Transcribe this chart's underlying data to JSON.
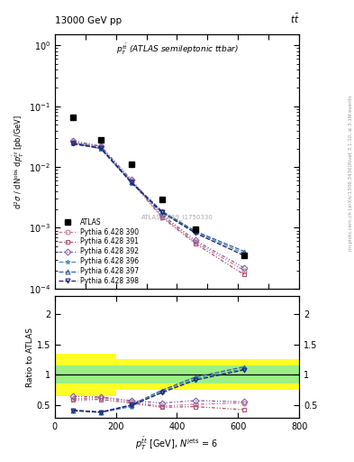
{
  "atlas_x": [
    60,
    150,
    250,
    350,
    460,
    620
  ],
  "atlas_y": [
    0.065,
    0.028,
    0.011,
    0.0029,
    0.00095,
    0.00035
  ],
  "mc_x": [
    60,
    150,
    250,
    350,
    460,
    620
  ],
  "pythia390_y": [
    0.026,
    0.022,
    0.006,
    0.00155,
    0.00058,
    0.0002
  ],
  "pythia391_y": [
    0.025,
    0.02,
    0.0058,
    0.0015,
    0.00055,
    0.00017
  ],
  "pythia392_y": [
    0.027,
    0.022,
    0.0062,
    0.00165,
    0.00062,
    0.00022
  ],
  "pythia396_y": [
    0.024,
    0.02,
    0.0055,
    0.00185,
    0.00085,
    0.00038
  ],
  "pythia397_y": [
    0.025,
    0.021,
    0.0057,
    0.0019,
    0.00088,
    0.00041
  ],
  "pythia398_y": [
    0.024,
    0.0205,
    0.0056,
    0.0018,
    0.00082,
    0.00035
  ],
  "ratio390_y": [
    0.6,
    0.62,
    0.55,
    0.48,
    0.51,
    0.53
  ],
  "ratio391_y": [
    0.58,
    0.59,
    0.53,
    0.46,
    0.47,
    0.42
  ],
  "ratio392_y": [
    0.64,
    0.63,
    0.57,
    0.53,
    0.57,
    0.55
  ],
  "ratio396_y": [
    0.4,
    0.37,
    0.47,
    0.72,
    0.93,
    1.1
  ],
  "ratio397_y": [
    0.41,
    0.38,
    0.5,
    0.74,
    0.96,
    1.13
  ],
  "ratio398_y": [
    0.41,
    0.38,
    0.49,
    0.7,
    0.91,
    1.08
  ],
  "color390": "#c87890",
  "color391": "#b05070",
  "color392": "#8060b0",
  "color396": "#5090c0",
  "color397": "#3060a0",
  "color398": "#202070",
  "ylim_main": [
    0.0001,
    1.5
  ],
  "ylim_ratio": [
    0.28,
    2.3
  ],
  "xlim": [
    0,
    800
  ],
  "band_steps_x": [
    0,
    100,
    200,
    650,
    800
  ],
  "band_yellow_lo": [
    0.65,
    0.65,
    0.75,
    0.75,
    0.75
  ],
  "band_yellow_hi": [
    1.35,
    1.35,
    1.25,
    1.25,
    1.25
  ],
  "band_green_lo": 0.85,
  "band_green_hi": 1.15
}
